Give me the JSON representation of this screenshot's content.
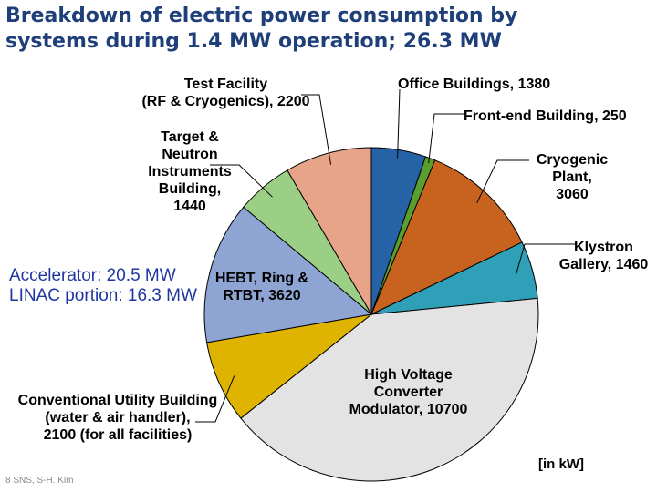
{
  "title": {
    "line1": "Breakdown of electric power consumption by",
    "line2": "systems during 1.4 MW operation; 26.3 MW"
  },
  "chart_data": {
    "type": "pie",
    "title": "Breakdown of electric power consumption by systems during 1.4 MW operation; 26.3 MW",
    "unit_label": "[in kW]",
    "slices": [
      {
        "key": "office",
        "name": "Office Buildings",
        "value": 1380,
        "color": "#2563a6",
        "label": "Office Buildings, 1380"
      },
      {
        "key": "frontend",
        "name": "Front-end Building",
        "value": 250,
        "color": "#5a9e2e",
        "label": "Front-end Building, 250"
      },
      {
        "key": "cryogenic",
        "name": "Cryogenic Plant",
        "value": 3060,
        "color": "#c8621f",
        "label": "Cryogenic\nPlant,\n3060"
      },
      {
        "key": "klystron",
        "name": "Klystron Gallery",
        "value": 1460,
        "color": "#2fa0b8",
        "label": "Klystron\nGallery, 1460"
      },
      {
        "key": "hvcm",
        "name": "High Voltage Converter Modulator",
        "value": 10700,
        "color": "#e3e3e3",
        "label": "High Voltage\nConverter\nModulator, 10700"
      },
      {
        "key": "utility",
        "name": "Conventional Utility Building",
        "value": 2100,
        "color": "#dfb400",
        "label": "Conventional Utility Building\n(water & air handler),\n2100 (for all facilities)"
      },
      {
        "key": "hebt",
        "name": "HEBT, Ring & RTBT",
        "value": 3620,
        "color": "#8ea4d2",
        "label": "HEBT, Ring &\nRTBT, 3620"
      },
      {
        "key": "target",
        "name": "Target & Neutron Instruments Building",
        "value": 1440,
        "color": "#9ccf86",
        "label": "Target &\nNeutron\nInstruments\nBuilding,\n1440"
      },
      {
        "key": "testfac",
        "name": "Test Facility (RF & Cryogenics)",
        "value": 2200,
        "color": "#e8a488",
        "label": "Test Facility\n(RF & Cryogenics), 2200"
      }
    ]
  },
  "annotation": {
    "text": "Accelerator: 20.5 MW\nLINAC portion: 16.3 MW"
  },
  "footer": "8  SNS, S-H. Kim"
}
